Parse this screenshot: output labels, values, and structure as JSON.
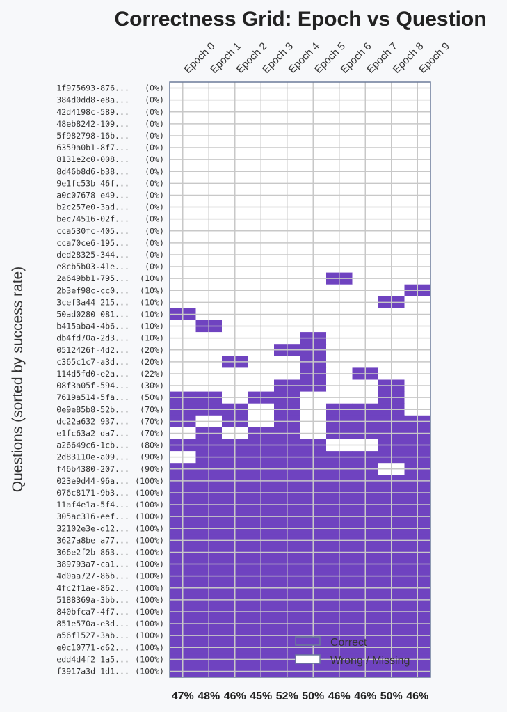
{
  "chart_data": {
    "type": "heatmap",
    "title": "Correctness Grid: Epoch vs Question",
    "ylabel": "Questions (sorted by success rate)",
    "xlabel": "",
    "columns": [
      "Epoch 0",
      "Epoch 1",
      "Epoch 2",
      "Epoch 3",
      "Epoch 4",
      "Epoch 5",
      "Epoch 6",
      "Epoch 7",
      "Epoch 8",
      "Epoch 9"
    ],
    "column_success": [
      "47%",
      "48%",
      "46%",
      "45%",
      "52%",
      "50%",
      "46%",
      "46%",
      "50%",
      "46%"
    ],
    "colors": {
      "correct": "#6f43c0",
      "wrong": "#ffffff",
      "grid": "#c8c8c8",
      "border": "#6b7a99"
    },
    "legend": {
      "placement": "bottom-right",
      "items": [
        {
          "label": "Correct",
          "color": "#6f43c0"
        },
        {
          "label": "Wrong / Missing",
          "color": "#ffffff"
        }
      ]
    },
    "rows": [
      {
        "id": "1f975693-876...",
        "rate": "(0%)",
        "cells": "0000000000"
      },
      {
        "id": "384d0dd8-e8a...",
        "rate": "(0%)",
        "cells": "0000000000"
      },
      {
        "id": "42d4198c-589...",
        "rate": "(0%)",
        "cells": "0000000000"
      },
      {
        "id": "48eb8242-109...",
        "rate": "(0%)",
        "cells": "0000000000"
      },
      {
        "id": "5f982798-16b...",
        "rate": "(0%)",
        "cells": "0000000000"
      },
      {
        "id": "6359a0b1-8f7...",
        "rate": "(0%)",
        "cells": "0000000000"
      },
      {
        "id": "8131e2c0-008...",
        "rate": "(0%)",
        "cells": "0000000000"
      },
      {
        "id": "8d46b8d6-b38...",
        "rate": "(0%)",
        "cells": "0000000000"
      },
      {
        "id": "9e1fc53b-46f...",
        "rate": "(0%)",
        "cells": "0000000000"
      },
      {
        "id": "a0c07678-e49...",
        "rate": "(0%)",
        "cells": "0000000000"
      },
      {
        "id": "b2c257e0-3ad...",
        "rate": "(0%)",
        "cells": "0000000000"
      },
      {
        "id": "bec74516-02f...",
        "rate": "(0%)",
        "cells": "0000000000"
      },
      {
        "id": "cca530fc-405...",
        "rate": "(0%)",
        "cells": "0000000000"
      },
      {
        "id": "cca70ce6-195...",
        "rate": "(0%)",
        "cells": "0000000000"
      },
      {
        "id": "ded28325-344...",
        "rate": "(0%)",
        "cells": "0000000000"
      },
      {
        "id": "e8cb5b03-41e...",
        "rate": "(0%)",
        "cells": "0000000000"
      },
      {
        "id": "2a649bb1-795...",
        "rate": "(10%)",
        "cells": "0000001000"
      },
      {
        "id": "2b3ef98c-cc0...",
        "rate": "(10%)",
        "cells": "0000000001"
      },
      {
        "id": "3cef3a44-215...",
        "rate": "(10%)",
        "cells": "0000000010"
      },
      {
        "id": "50ad0280-081...",
        "rate": "(10%)",
        "cells": "1000000000"
      },
      {
        "id": "b415aba4-4b6...",
        "rate": "(10%)",
        "cells": "0100000000"
      },
      {
        "id": "db4fd70a-2d3...",
        "rate": "(10%)",
        "cells": "0000010000"
      },
      {
        "id": "0512426f-4d2...",
        "rate": "(20%)",
        "cells": "0000110000"
      },
      {
        "id": "c365c1c7-a3d...",
        "rate": "(20%)",
        "cells": "0010010000"
      },
      {
        "id": "114d5fd0-e2a...",
        "rate": "(22%)",
        "cells": "0000010100"
      },
      {
        "id": "08f3a05f-594...",
        "rate": "(30%)",
        "cells": "0000110010"
      },
      {
        "id": "7619a514-5fa...",
        "rate": "(50%)",
        "cells": "1101100010"
      },
      {
        "id": "0e9e85b8-52b...",
        "rate": "(70%)",
        "cells": "1110101110"
      },
      {
        "id": "dc22a632-937...",
        "rate": "(70%)",
        "cells": "1010101111"
      },
      {
        "id": "e1fc63a2-da7...",
        "rate": "(70%)",
        "cells": "0101101111"
      },
      {
        "id": "a26649c6-1cb...",
        "rate": "(80%)",
        "cells": "1111110011"
      },
      {
        "id": "2d83110e-a09...",
        "rate": "(90%)",
        "cells": "0111111111"
      },
      {
        "id": "f46b4380-207...",
        "rate": "(90%)",
        "cells": "1111111101"
      },
      {
        "id": "023e9d44-96a...",
        "rate": "(100%)",
        "cells": "1111111111"
      },
      {
        "id": "076c8171-9b3...",
        "rate": "(100%)",
        "cells": "1111111111"
      },
      {
        "id": "11af4e1a-5f4...",
        "rate": "(100%)",
        "cells": "1111111111"
      },
      {
        "id": "305ac316-eef...",
        "rate": "(100%)",
        "cells": "1111111111"
      },
      {
        "id": "32102e3e-d12...",
        "rate": "(100%)",
        "cells": "1111111111"
      },
      {
        "id": "3627a8be-a77...",
        "rate": "(100%)",
        "cells": "1111111111"
      },
      {
        "id": "366e2f2b-863...",
        "rate": "(100%)",
        "cells": "1111111111"
      },
      {
        "id": "389793a7-ca1...",
        "rate": "(100%)",
        "cells": "1111111111"
      },
      {
        "id": "4d0aa727-86b...",
        "rate": "(100%)",
        "cells": "1111111111"
      },
      {
        "id": "4fc2f1ae-862...",
        "rate": "(100%)",
        "cells": "1111111111"
      },
      {
        "id": "5188369a-3bb...",
        "rate": "(100%)",
        "cells": "1111111111"
      },
      {
        "id": "840bfca7-4f7...",
        "rate": "(100%)",
        "cells": "1111111111"
      },
      {
        "id": "851e570a-e3d...",
        "rate": "(100%)",
        "cells": "1111111111"
      },
      {
        "id": "a56f1527-3ab...",
        "rate": "(100%)",
        "cells": "1111111111"
      },
      {
        "id": "e0c10771-d62...",
        "rate": "(100%)",
        "cells": "1111111111"
      },
      {
        "id": "edd4d4f2-1a5...",
        "rate": "(100%)",
        "cells": "1111111111"
      },
      {
        "id": "f3917a3d-1d1...",
        "rate": "(100%)",
        "cells": "1111111111"
      }
    ]
  }
}
